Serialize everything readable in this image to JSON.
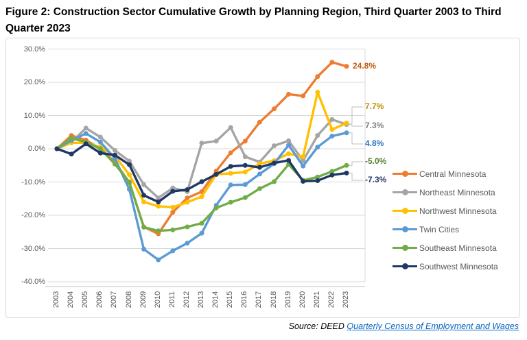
{
  "title": "Figure 2:  Construction Sector Cumulative Growth by Planning Region, Third Quarter 2003 to Third Quarter 2023",
  "source": {
    "prefix": "Source:  DEED ",
    "link_text": "Quarterly Census of Employment and Wages"
  },
  "chart_data": {
    "type": "line",
    "x": [
      "2003",
      "2004",
      "2005",
      "2006",
      "2007",
      "2008",
      "2009",
      "2010",
      "2011",
      "2012",
      "2013",
      "2014",
      "2015",
      "2016",
      "2017",
      "2018",
      "2019",
      "2020",
      "2021",
      "2022",
      "2023"
    ],
    "xlabel": "",
    "ylabel": "",
    "ylim": [
      -40,
      30
    ],
    "y_ticks": [
      "30.0%",
      "20.0%",
      "10.0%",
      "0.0%",
      "-10.0%",
      "-20.0%",
      "-30.0%",
      "-40.0%"
    ],
    "grid": true,
    "legend_position": "right",
    "gridline_color": "#D9D9D9",
    "series": [
      {
        "name": "Central Minnesota",
        "color": "#ED7D31",
        "label_color": "#C55A11",
        "end_label": "24.8%",
        "values": [
          0.0,
          4.0,
          2.6,
          0.0,
          -4.0,
          -10.2,
          -23.5,
          -25.6,
          -19.1,
          -14.8,
          -12.9,
          -6.7,
          -1.2,
          2.3,
          8.0,
          12.0,
          16.4,
          15.9,
          21.7,
          26.0,
          24.8
        ]
      },
      {
        "name": "Northeast Minnesota",
        "color": "#A5A5A5",
        "label_color": "#7F7F7F",
        "end_label": "7.3%",
        "values": [
          0.0,
          2.0,
          6.2,
          3.5,
          -0.5,
          -3.7,
          -10.8,
          -14.8,
          -11.8,
          -12.9,
          1.7,
          2.3,
          6.4,
          -2.4,
          -4.0,
          0.9,
          2.4,
          -3.6,
          4.0,
          8.8,
          7.3
        ]
      },
      {
        "name": "Northwest Minnesota",
        "color": "#FFC000",
        "label_color": "#BF8F00",
        "end_label": "7.7%",
        "values": [
          0.0,
          1.8,
          1.8,
          0.5,
          -2.2,
          -7.8,
          -16.0,
          -17.3,
          -17.6,
          -16.1,
          -14.4,
          -7.7,
          -7.4,
          -7.0,
          -4.5,
          -3.6,
          -1.5,
          -2.4,
          17.0,
          5.8,
          7.7
        ]
      },
      {
        "name": "Twin Cities",
        "color": "#5B9BD5",
        "label_color": "#2E75B6",
        "end_label": "4.8%",
        "values": [
          0.0,
          2.5,
          4.6,
          2.0,
          -2.9,
          -12.2,
          -30.2,
          -33.4,
          -30.7,
          -28.4,
          -25.4,
          -17.0,
          -10.9,
          -10.8,
          -7.6,
          -4.5,
          1.1,
          -5.2,
          0.5,
          3.8,
          4.8
        ]
      },
      {
        "name": "Southeast Minnesota",
        "color": "#70AD47",
        "label_color": "#538135",
        "end_label": "-5.0%",
        "values": [
          0.0,
          3.2,
          2.0,
          0.0,
          -4.6,
          -10.0,
          -23.6,
          -24.7,
          -24.4,
          -23.5,
          -22.4,
          -17.8,
          -16.1,
          -14.7,
          -12.0,
          -9.9,
          -4.7,
          -9.5,
          -8.5,
          -6.8,
          -5.0
        ]
      },
      {
        "name": "Southwest Minnesota",
        "color": "#203864",
        "label_color": "#1F3864",
        "end_label": "-7.3%",
        "values": [
          0.0,
          -1.6,
          1.5,
          -1.3,
          -1.9,
          -4.8,
          -14.0,
          -16.0,
          -12.8,
          -12.3,
          -9.9,
          -7.7,
          -5.3,
          -5.0,
          -5.6,
          -4.3,
          -3.5,
          -9.8,
          -9.6,
          -7.9,
          -7.3
        ]
      }
    ]
  }
}
